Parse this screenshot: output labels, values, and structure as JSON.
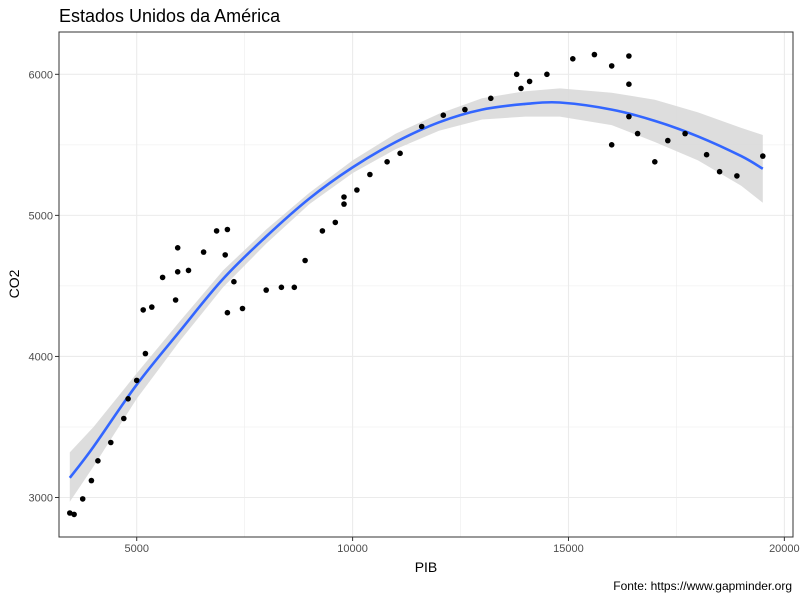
{
  "chart_data": {
    "type": "scatter",
    "title": "Estados Unidos da América",
    "xlabel": "PIB",
    "ylabel": "CO2",
    "caption": "Fonte: https://www.gapminder.org",
    "xlim": [
      3200,
      20200
    ],
    "ylim": [
      2720,
      6300
    ],
    "x_ticks": [
      5000,
      10000,
      15000,
      20000
    ],
    "y_ticks": [
      3000,
      4000,
      5000,
      6000
    ],
    "grid": true,
    "theme": "bw",
    "colors": {
      "points": "#000000",
      "smooth_line": "#3366FF",
      "confidence_band": "#D9D9D9",
      "grid": "#EBEBEB",
      "panel_border": "#333333"
    },
    "points": [
      {
        "x": 3450,
        "y": 2890
      },
      {
        "x": 3550,
        "y": 2880
      },
      {
        "x": 3750,
        "y": 2990
      },
      {
        "x": 3950,
        "y": 3120
      },
      {
        "x": 4100,
        "y": 3260
      },
      {
        "x": 4400,
        "y": 3390
      },
      {
        "x": 4700,
        "y": 3560
      },
      {
        "x": 4800,
        "y": 3700
      },
      {
        "x": 5000,
        "y": 3830
      },
      {
        "x": 5150,
        "y": 4330
      },
      {
        "x": 5200,
        "y": 4020
      },
      {
        "x": 5350,
        "y": 4350
      },
      {
        "x": 5600,
        "y": 4560
      },
      {
        "x": 5900,
        "y": 4400
      },
      {
        "x": 5950,
        "y": 4600
      },
      {
        "x": 5950,
        "y": 4770
      },
      {
        "x": 6200,
        "y": 4610
      },
      {
        "x": 6550,
        "y": 4740
      },
      {
        "x": 6850,
        "y": 4890
      },
      {
        "x": 7050,
        "y": 4720
      },
      {
        "x": 7100,
        "y": 4900
      },
      {
        "x": 7100,
        "y": 4310
      },
      {
        "x": 7250,
        "y": 4530
      },
      {
        "x": 7450,
        "y": 4340
      },
      {
        "x": 8000,
        "y": 4470
      },
      {
        "x": 8350,
        "y": 4490
      },
      {
        "x": 8650,
        "y": 4490
      },
      {
        "x": 8900,
        "y": 4680
      },
      {
        "x": 9300,
        "y": 4890
      },
      {
        "x": 9600,
        "y": 4950
      },
      {
        "x": 9800,
        "y": 5080
      },
      {
        "x": 9800,
        "y": 5130
      },
      {
        "x": 10100,
        "y": 5180
      },
      {
        "x": 10400,
        "y": 5290
      },
      {
        "x": 10800,
        "y": 5380
      },
      {
        "x": 11100,
        "y": 5440
      },
      {
        "x": 11600,
        "y": 5630
      },
      {
        "x": 12100,
        "y": 5710
      },
      {
        "x": 12600,
        "y": 5750
      },
      {
        "x": 13200,
        "y": 5830
      },
      {
        "x": 13800,
        "y": 6000
      },
      {
        "x": 13900,
        "y": 5900
      },
      {
        "x": 14100,
        "y": 5950
      },
      {
        "x": 14500,
        "y": 6000
      },
      {
        "x": 15100,
        "y": 6110
      },
      {
        "x": 15600,
        "y": 6140
      },
      {
        "x": 16000,
        "y": 6060
      },
      {
        "x": 16000,
        "y": 5500
      },
      {
        "x": 16400,
        "y": 6130
      },
      {
        "x": 16400,
        "y": 5930
      },
      {
        "x": 16400,
        "y": 5700
      },
      {
        "x": 16600,
        "y": 5580
      },
      {
        "x": 17000,
        "y": 5380
      },
      {
        "x": 17300,
        "y": 5530
      },
      {
        "x": 17700,
        "y": 5580
      },
      {
        "x": 18200,
        "y": 5430
      },
      {
        "x": 18500,
        "y": 5310
      },
      {
        "x": 18900,
        "y": 5280
      },
      {
        "x": 19500,
        "y": 5420
      }
    ],
    "smooth_fit": {
      "method": "quadratic",
      "x": [
        3450,
        4000,
        5000,
        6000,
        7000,
        8000,
        9000,
        10000,
        11000,
        12000,
        13000,
        14000,
        14800,
        16000,
        17000,
        18000,
        19000,
        19500
      ],
      "y": [
        3140,
        3360,
        3800,
        4180,
        4550,
        4850,
        5120,
        5340,
        5520,
        5660,
        5750,
        5790,
        5800,
        5750,
        5670,
        5560,
        5420,
        5330
      ],
      "upper": [
        3320,
        3500,
        3880,
        4250,
        4610,
        4900,
        5160,
        5390,
        5580,
        5720,
        5830,
        5880,
        5900,
        5870,
        5820,
        5730,
        5620,
        5570
      ],
      "lower": [
        2970,
        3220,
        3700,
        4110,
        4490,
        4800,
        5080,
        5300,
        5470,
        5600,
        5680,
        5700,
        5700,
        5640,
        5520,
        5390,
        5210,
        5090
      ]
    }
  }
}
